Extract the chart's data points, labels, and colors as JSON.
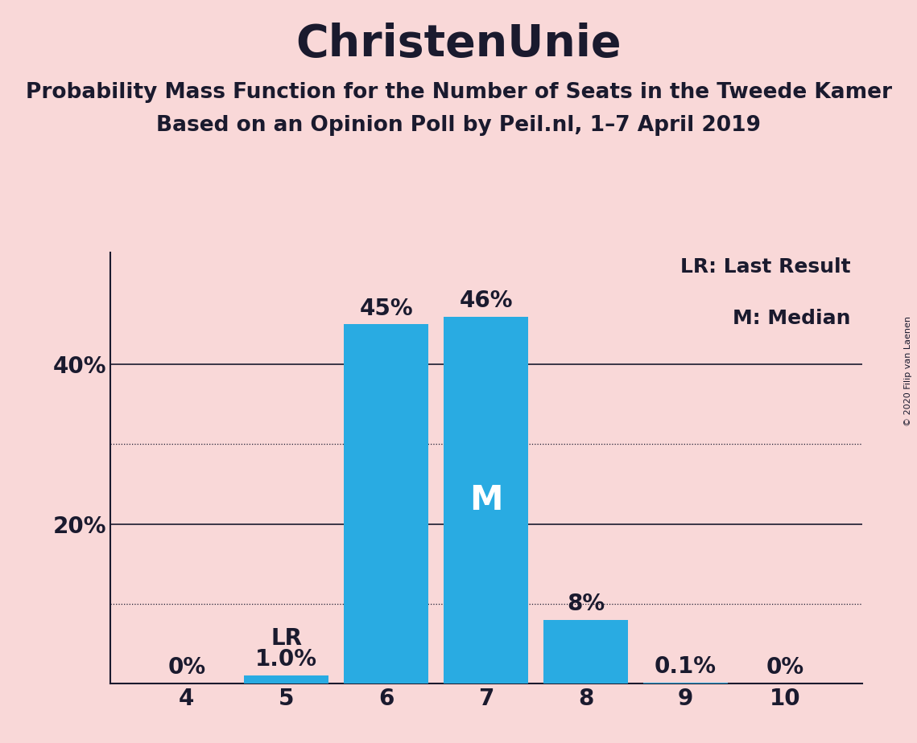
{
  "title": "ChristenUnie",
  "subtitle1": "Probability Mass Function for the Number of Seats in the Tweede Kamer",
  "subtitle2": "Based on an Opinion Poll by Peil.nl, 1–7 April 2019",
  "categories": [
    4,
    5,
    6,
    7,
    8,
    9,
    10
  ],
  "values": [
    0.0,
    1.0,
    45.0,
    46.0,
    8.0,
    0.1,
    0.0
  ],
  "bar_color": "#29ABE2",
  "background_color": "#F9D8D8",
  "label_fontsize": 20,
  "title_fontsize": 40,
  "subtitle_fontsize": 19,
  "bar_labels": [
    "0%",
    "1.0%",
    "45%",
    "46%",
    "8%",
    "0.1%",
    "0%"
  ],
  "lr_bar": 5,
  "median_bar": 7,
  "ylim": [
    0,
    54
  ],
  "ytick_positions": [
    0,
    10,
    20,
    30,
    40,
    50
  ],
  "ytick_labels": [
    "",
    "",
    "20%",
    "",
    "40%",
    ""
  ],
  "solid_yticks": [
    20,
    40
  ],
  "dotted_yticks": [
    10,
    30
  ],
  "legend_text1": "LR: Last Result",
  "legend_text2": "M: Median",
  "copyright_text": "© 2020 Filip van Laenen",
  "text_color": "#1a1a2e",
  "bar_label_above_color": "#1a1a2e",
  "bar_label_inside_color": "#FFFFFF",
  "lr_label": "LR",
  "median_label": "M",
  "median_fontsize": 30
}
